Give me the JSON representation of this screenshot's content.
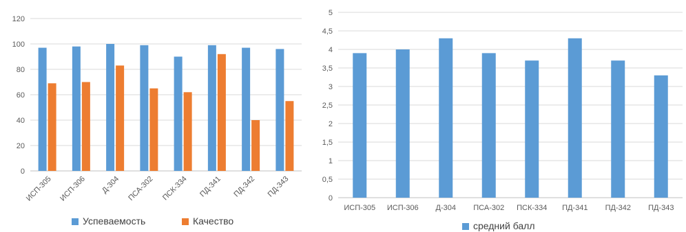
{
  "chart_data": [
    {
      "type": "bar",
      "categories": [
        "ИСП-305",
        "ИСП-306",
        "Д-304",
        "ПСА-302",
        "ПСК-334",
        "ПД-341",
        "ПД-342",
        "ПД-343"
      ],
      "series": [
        {
          "name": "Успеваемость",
          "color": "#5b9bd5",
          "values": [
            97,
            98,
            100,
            99,
            90,
            99,
            97,
            96
          ]
        },
        {
          "name": "Качество",
          "color": "#ed7d31",
          "values": [
            69,
            70,
            83,
            65,
            62,
            92,
            40,
            55
          ]
        }
      ],
      "ylim": [
        0,
        120
      ],
      "yticks": [
        "0",
        "20",
        "40",
        "60",
        "80",
        "100",
        "120"
      ],
      "grid": true,
      "legend": "bottom"
    },
    {
      "type": "bar",
      "categories": [
        "ИСП-305",
        "ИСП-306",
        "Д-304",
        "ПСА-302",
        "ПСК-334",
        "ПД-341",
        "ПД-342",
        "ПД-343"
      ],
      "series": [
        {
          "name": "средний балл",
          "color": "#5b9bd5",
          "values": [
            3.9,
            4.0,
            4.3,
            3.9,
            3.7,
            4.3,
            3.7,
            3.3
          ]
        }
      ],
      "ylim": [
        0,
        5
      ],
      "yticks": [
        "0",
        "0,5",
        "1",
        "1,5",
        "2",
        "2,5",
        "3",
        "3,5",
        "4",
        "4,5",
        "5"
      ],
      "grid": true,
      "legend": "bottom"
    }
  ]
}
